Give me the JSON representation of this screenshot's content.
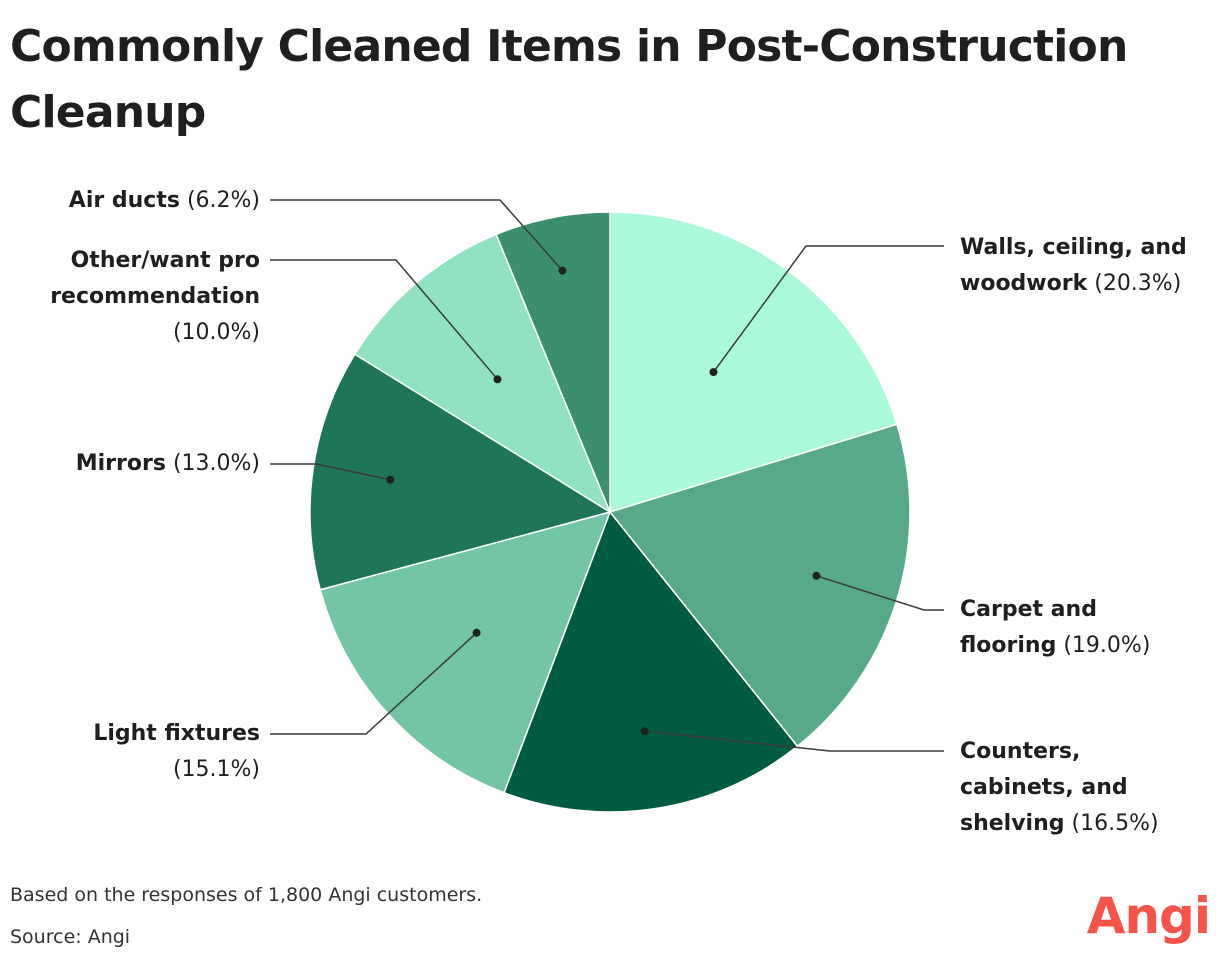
{
  "page": {
    "title": "Commonly Cleaned Items in Post-Construction Cleanup",
    "footnote": "Based on the responses of 1,800 Angi customers.",
    "source": "Source: Angi",
    "brand": "Angi"
  },
  "colors": {
    "brand": "#f6544a",
    "text": "#1f1f1f",
    "leader": "#3a3a3a"
  },
  "chart_data": {
    "type": "pie",
    "title": "Commonly Cleaned Items in Post-Construction Cleanup",
    "start_angle": "12 o'clock",
    "direction": "clockwise",
    "slices": [
      {
        "name": "Walls, ceiling, and woodwork",
        "value": 20.3,
        "pct_label": "(20.3%)",
        "color": "#aaf9d9",
        "label_side": "right"
      },
      {
        "name": "Carpet and flooring",
        "value": 19.0,
        "pct_label": "(19.0%)",
        "color": "#58a98a",
        "label_side": "right"
      },
      {
        "name": "Counters, cabinets, and shelving",
        "value": 16.5,
        "pct_label": "(16.5%)",
        "color": "#005c40",
        "label_side": "right"
      },
      {
        "name": "Light fixtures",
        "value": 15.1,
        "pct_label": "(15.1%)",
        "color": "#74c5a5",
        "label_side": "left"
      },
      {
        "name": "Mirrors",
        "value": 13.0,
        "pct_label": "(13.0%)",
        "color": "#1f7557",
        "label_side": "left"
      },
      {
        "name": "Other/want pro recommendation",
        "value": 10.0,
        "pct_label": "(10.0%)",
        "color": "#90e2c1",
        "label_side": "left"
      },
      {
        "name": "Air ducts",
        "value": 6.2,
        "pct_label": "(6.2%)",
        "color": "#3b8f6f",
        "label_side": "left"
      }
    ]
  }
}
